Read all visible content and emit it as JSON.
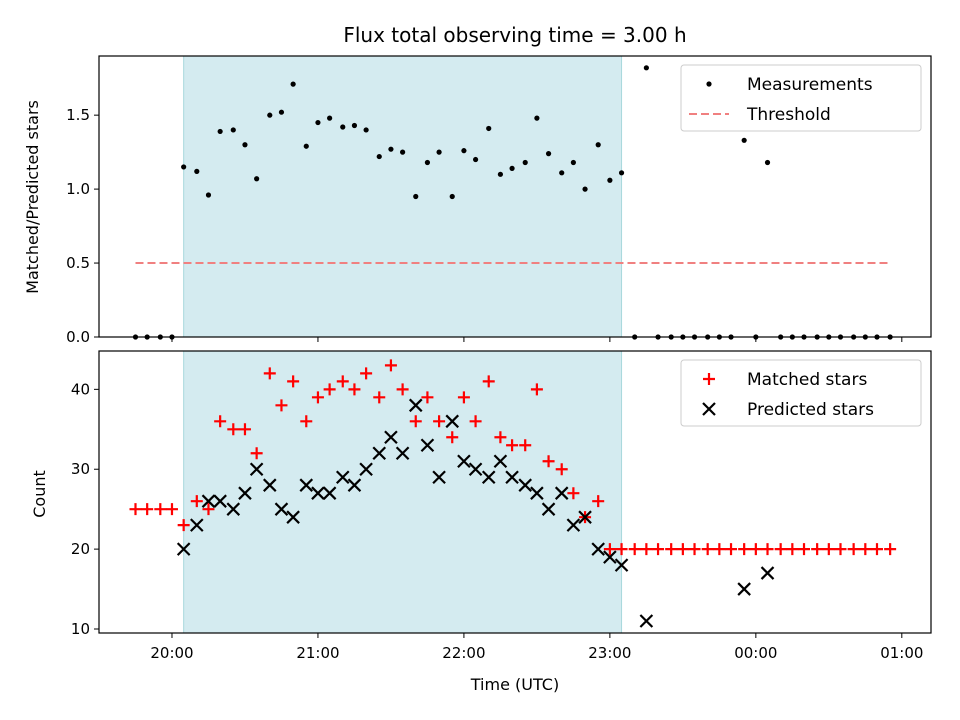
{
  "chart_data": {
    "title": "Flux total observing time = 3.00 h",
    "xlabel": "Time (UTC)",
    "x_ticks": [
      "20:00",
      "21:00",
      "22:00",
      "23:00",
      "00:00",
      "01:00"
    ],
    "x_tick_hours": [
      20,
      21,
      22,
      23,
      24,
      25
    ],
    "x_range_hours": [
      19.5,
      25.2
    ],
    "shaded_interval_hours": [
      20.08,
      23.08
    ],
    "shade_color": "#d4ebf0",
    "panels": [
      {
        "type": "scatter",
        "ylabel": "Matched/Predicted stars",
        "ylim": [
          0,
          1.9
        ],
        "y_ticks": [
          0.0,
          0.5,
          1.0,
          1.5
        ],
        "y_tick_labels": [
          "0.0",
          "0.5",
          "1.0",
          "1.5"
        ],
        "legend_position": "upper right",
        "series": [
          {
            "name": "Measurements",
            "marker": "dot",
            "color": "#000000",
            "points": [
              [
                19.75,
                0.0
              ],
              [
                19.83,
                0.0
              ],
              [
                19.92,
                0.0
              ],
              [
                20.0,
                0.0
              ],
              [
                20.08,
                1.15
              ],
              [
                20.17,
                1.12
              ],
              [
                20.25,
                0.96
              ],
              [
                20.33,
                1.39
              ],
              [
                20.42,
                1.4
              ],
              [
                20.5,
                1.3
              ],
              [
                20.58,
                1.07
              ],
              [
                20.67,
                1.5
              ],
              [
                20.75,
                1.52
              ],
              [
                20.83,
                1.71
              ],
              [
                20.92,
                1.29
              ],
              [
                21.0,
                1.45
              ],
              [
                21.08,
                1.48
              ],
              [
                21.17,
                1.42
              ],
              [
                21.25,
                1.43
              ],
              [
                21.33,
                1.4
              ],
              [
                21.42,
                1.22
              ],
              [
                21.5,
                1.27
              ],
              [
                21.58,
                1.25
              ],
              [
                21.67,
                0.95
              ],
              [
                21.75,
                1.18
              ],
              [
                21.83,
                1.25
              ],
              [
                21.92,
                0.95
              ],
              [
                22.0,
                1.26
              ],
              [
                22.08,
                1.2
              ],
              [
                22.17,
                1.41
              ],
              [
                22.25,
                1.1
              ],
              [
                22.33,
                1.14
              ],
              [
                22.42,
                1.18
              ],
              [
                22.5,
                1.48
              ],
              [
                22.58,
                1.24
              ],
              [
                22.67,
                1.11
              ],
              [
                22.75,
                1.18
              ],
              [
                22.83,
                1.0
              ],
              [
                22.92,
                1.3
              ],
              [
                23.0,
                1.06
              ],
              [
                23.08,
                1.11
              ],
              [
                23.17,
                0.0
              ],
              [
                23.25,
                1.82
              ],
              [
                23.33,
                0.0
              ],
              [
                23.42,
                0.0
              ],
              [
                23.5,
                0.0
              ],
              [
                23.58,
                0.0
              ],
              [
                23.67,
                0.0
              ],
              [
                23.75,
                0.0
              ],
              [
                23.83,
                0.0
              ],
              [
                23.92,
                1.33
              ],
              [
                24.0,
                0.0
              ],
              [
                24.08,
                1.18
              ],
              [
                24.17,
                0.0
              ],
              [
                24.25,
                0.0
              ],
              [
                24.33,
                0.0
              ],
              [
                24.42,
                0.0
              ],
              [
                24.5,
                0.0
              ],
              [
                24.58,
                0.0
              ],
              [
                24.67,
                0.0
              ],
              [
                24.75,
                0.0
              ],
              [
                24.83,
                0.0
              ],
              [
                24.92,
                0.0
              ]
            ]
          },
          {
            "name": "Threshold",
            "type": "line",
            "style": "dashed",
            "color": "#f08080",
            "points": [
              [
                19.75,
                0.5
              ],
              [
                24.92,
                0.5
              ]
            ]
          }
        ]
      },
      {
        "type": "scatter",
        "ylabel": "Count",
        "ylim": [
          9.5,
          44.8
        ],
        "y_ticks": [
          10,
          20,
          30,
          40
        ],
        "y_tick_labels": [
          "10",
          "20",
          "30",
          "40"
        ],
        "legend_position": "upper right",
        "series": [
          {
            "name": "Matched stars",
            "marker": "plus",
            "color": "#ff0000",
            "points": [
              [
                19.75,
                25
              ],
              [
                19.83,
                25
              ],
              [
                19.92,
                25
              ],
              [
                20.0,
                25
              ],
              [
                20.08,
                23
              ],
              [
                20.17,
                26
              ],
              [
                20.25,
                25
              ],
              [
                20.33,
                36
              ],
              [
                20.42,
                35
              ],
              [
                20.5,
                35
              ],
              [
                20.58,
                32
              ],
              [
                20.67,
                42
              ],
              [
                20.75,
                38
              ],
              [
                20.83,
                41
              ],
              [
                20.92,
                36
              ],
              [
                21.0,
                39
              ],
              [
                21.08,
                40
              ],
              [
                21.17,
                41
              ],
              [
                21.25,
                40
              ],
              [
                21.33,
                42
              ],
              [
                21.42,
                39
              ],
              [
                21.5,
                43
              ],
              [
                21.58,
                40
              ],
              [
                21.67,
                36
              ],
              [
                21.75,
                39
              ],
              [
                21.83,
                36
              ],
              [
                21.92,
                34
              ],
              [
                22.0,
                39
              ],
              [
                22.08,
                36
              ],
              [
                22.17,
                41
              ],
              [
                22.25,
                34
              ],
              [
                22.33,
                33
              ],
              [
                22.42,
                33
              ],
              [
                22.5,
                40
              ],
              [
                22.58,
                31
              ],
              [
                22.67,
                30
              ],
              [
                22.75,
                27
              ],
              [
                22.83,
                24
              ],
              [
                22.92,
                26
              ],
              [
                23.0,
                20
              ],
              [
                23.08,
                20
              ],
              [
                23.17,
                20
              ],
              [
                23.25,
                20
              ],
              [
                23.33,
                20
              ],
              [
                23.42,
                20
              ],
              [
                23.5,
                20
              ],
              [
                23.58,
                20
              ],
              [
                23.67,
                20
              ],
              [
                23.75,
                20
              ],
              [
                23.83,
                20
              ],
              [
                23.92,
                20
              ],
              [
                24.0,
                20
              ],
              [
                24.08,
                20
              ],
              [
                24.17,
                20
              ],
              [
                24.25,
                20
              ],
              [
                24.33,
                20
              ],
              [
                24.42,
                20
              ],
              [
                24.5,
                20
              ],
              [
                24.58,
                20
              ],
              [
                24.67,
                20
              ],
              [
                24.75,
                20
              ],
              [
                24.83,
                20
              ],
              [
                24.92,
                20
              ]
            ]
          },
          {
            "name": "Predicted stars",
            "marker": "x",
            "color": "#000000",
            "points": [
              [
                20.08,
                20
              ],
              [
                20.17,
                23
              ],
              [
                20.25,
                26
              ],
              [
                20.33,
                26
              ],
              [
                20.42,
                25
              ],
              [
                20.5,
                27
              ],
              [
                20.58,
                30
              ],
              [
                20.67,
                28
              ],
              [
                20.75,
                25
              ],
              [
                20.83,
                24
              ],
              [
                20.92,
                28
              ],
              [
                21.0,
                27
              ],
              [
                21.08,
                27
              ],
              [
                21.17,
                29
              ],
              [
                21.25,
                28
              ],
              [
                21.33,
                30
              ],
              [
                21.42,
                32
              ],
              [
                21.5,
                34
              ],
              [
                21.58,
                32
              ],
              [
                21.67,
                38
              ],
              [
                21.75,
                33
              ],
              [
                21.83,
                29
              ],
              [
                21.92,
                36
              ],
              [
                22.0,
                31
              ],
              [
                22.08,
                30
              ],
              [
                22.17,
                29
              ],
              [
                22.25,
                31
              ],
              [
                22.33,
                29
              ],
              [
                22.42,
                28
              ],
              [
                22.5,
                27
              ],
              [
                22.58,
                25
              ],
              [
                22.67,
                27
              ],
              [
                22.75,
                23
              ],
              [
                22.83,
                24
              ],
              [
                22.92,
                20
              ],
              [
                23.0,
                19
              ],
              [
                23.08,
                18
              ],
              [
                23.25,
                11
              ],
              [
                23.92,
                15
              ],
              [
                24.08,
                17
              ]
            ]
          }
        ]
      }
    ]
  }
}
